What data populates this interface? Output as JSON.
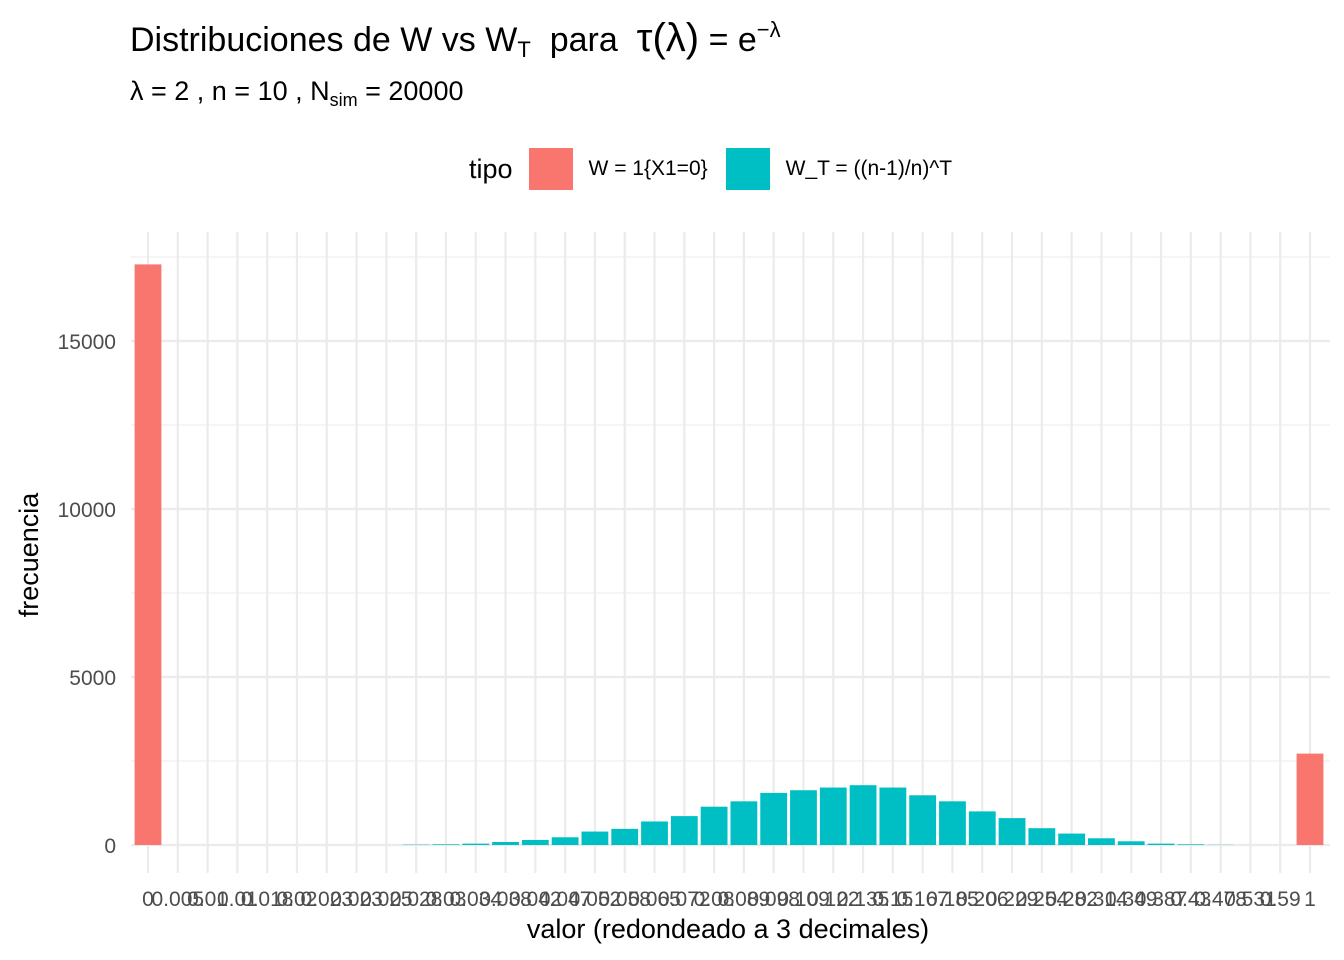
{
  "chart_data": {
    "type": "bar",
    "title": {
      "main": "Distribuciones de W vs W",
      "main_sub": "T",
      "mid": "para",
      "tau_open": "τ(λ)",
      "equals": "= e",
      "exp": "−λ"
    },
    "subtitle": {
      "lambda_part": "λ = 2 ,  n = 10 ,  N",
      "sub": "sim",
      "tail": " = 20000"
    },
    "xlabel": "valor (redondeado a 3 decimales)",
    "ylabel": "frecuencia",
    "ylim": [
      0,
      17500
    ],
    "yticks": [
      0,
      5000,
      10000,
      15000
    ],
    "grid": true,
    "legend": {
      "title": "tipo",
      "placement": "top",
      "entries": [
        {
          "label": "W = 1{X1=0}",
          "color": "#F8766D"
        },
        {
          "label": "W_T = ((n-1)/n)^T",
          "color": "#00BFC4"
        }
      ]
    },
    "categories": [
      "0",
      "0.005",
      "0.01",
      "0.01",
      "0.018",
      "0.02",
      "0.023",
      "0.023",
      "0.025",
      "0.028",
      "0.03",
      "0.034",
      "0.038",
      "0.042",
      "0.047",
      "0.052",
      "0.058",
      "0.065",
      "0.072",
      "0.08",
      "0.089",
      "0.098",
      "0.109",
      "0.122",
      "0.135",
      "0.15",
      "0.167",
      "0.185",
      "0.206",
      "0.229",
      "0.254",
      "0.282",
      "0.314",
      "0.349",
      "0.387",
      "0.43",
      "0.478",
      "0.531",
      "0.59",
      "1"
    ],
    "series": [
      {
        "name": "W = 1{X1=0}",
        "color": "#F8766D",
        "values": [
          17280,
          0,
          0,
          0,
          0,
          0,
          0,
          0,
          0,
          0,
          0,
          0,
          0,
          0,
          0,
          0,
          0,
          0,
          0,
          0,
          0,
          0,
          0,
          0,
          0,
          0,
          0,
          0,
          0,
          0,
          0,
          0,
          0,
          0,
          0,
          0,
          0,
          0,
          0,
          2720
        ]
      },
      {
        "name": "W_T = ((n-1)/n)^T",
        "color": "#00BFC4",
        "values": [
          0,
          0,
          0,
          0,
          0,
          0,
          0,
          0,
          0,
          10,
          20,
          40,
          90,
          150,
          230,
          400,
          480,
          700,
          860,
          1140,
          1300,
          1550,
          1630,
          1710,
          1780,
          1710,
          1480,
          1300,
          1000,
          800,
          500,
          340,
          200,
          110,
          40,
          20,
          5,
          0,
          0,
          0
        ]
      }
    ]
  }
}
